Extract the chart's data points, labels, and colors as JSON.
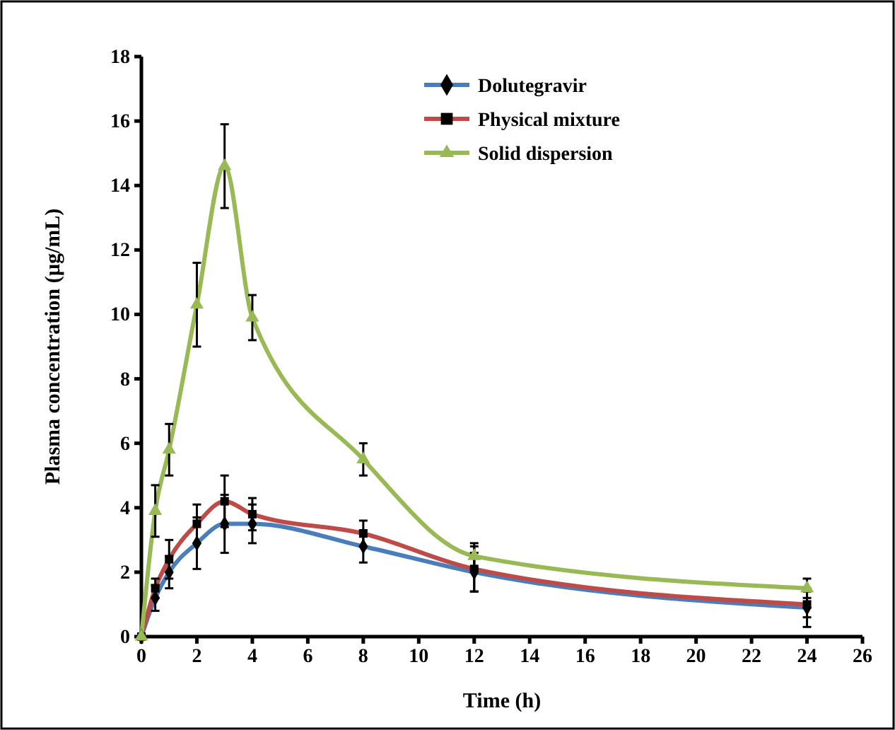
{
  "chart_data": {
    "type": "line",
    "xlabel": "Time (h)",
    "ylabel": "Plasma concentration (µg/mL)",
    "x": [
      0,
      0.5,
      1,
      2,
      3,
      4,
      8,
      12,
      24
    ],
    "xlim": [
      0,
      26
    ],
    "xticks": [
      0,
      2,
      4,
      6,
      8,
      10,
      12,
      14,
      16,
      18,
      20,
      22,
      24,
      26
    ],
    "ylim": [
      0,
      18
    ],
    "yticks": [
      0,
      2,
      4,
      6,
      8,
      10,
      12,
      14,
      16,
      18
    ],
    "grid": false,
    "legend": "top right",
    "series": [
      {
        "name": "Dolutegravir",
        "color": "#4a7ebb",
        "marker": "diamond",
        "values": [
          0,
          1.2,
          2.0,
          2.9,
          3.5,
          3.5,
          2.8,
          2.0,
          0.9
        ],
        "errors": [
          null,
          0.4,
          0.5,
          0.8,
          0.9,
          0.6,
          0.5,
          0.6,
          0.6
        ]
      },
      {
        "name": "Physical mixture",
        "color": "#be4b48",
        "marker": "square",
        "values": [
          0,
          1.5,
          2.4,
          3.5,
          4.2,
          3.8,
          3.2,
          2.1,
          1.0
        ],
        "errors": [
          null,
          0.3,
          0.6,
          0.6,
          0.8,
          0.5,
          0.4,
          0.7,
          0.4
        ]
      },
      {
        "name": "Solid dispersion",
        "color": "#98b954",
        "marker": "triangle",
        "values": [
          0,
          3.9,
          5.8,
          10.3,
          14.6,
          9.9,
          5.5,
          2.5,
          1.5
        ],
        "errors": [
          null,
          0.8,
          0.8,
          1.3,
          1.3,
          0.7,
          0.5,
          0.4,
          0.3
        ]
      }
    ]
  }
}
